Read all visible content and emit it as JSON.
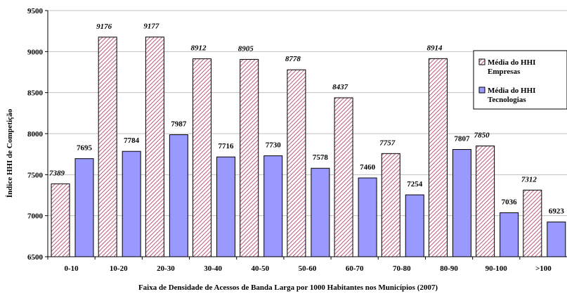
{
  "chart_data": {
    "type": "bar",
    "categories": [
      "0-10",
      "10-20",
      "20-30",
      "30-40",
      "40-50",
      "50-60",
      "60-70",
      "70-80",
      "80-90",
      "90-100",
      ">100"
    ],
    "series": [
      {
        "name": "Média do HHI Empresas",
        "values": [
          7389,
          9176,
          9177,
          8912,
          8905,
          8778,
          8437,
          7757,
          8914,
          7850,
          7312
        ],
        "color": "#c8758f",
        "pattern": "diagonal-hatch",
        "label_style": "italic"
      },
      {
        "name": "Média do HHI Tecnologias",
        "values": [
          7695,
          7784,
          7987,
          7716,
          7730,
          7578,
          7460,
          7254,
          7807,
          7036,
          6923
        ],
        "color": "#9999ff",
        "pattern": "solid",
        "label_style": "normal"
      }
    ],
    "title": "",
    "xlabel": "Faixa de Densidade de Acessos de Banda Larga por 1000 Habitantes nos Municípios (2007)",
    "ylabel": "Índice HHI de Competição",
    "ylim": [
      6500,
      9500
    ],
    "yticks": [
      6500,
      7000,
      7500,
      8000,
      8500,
      9000,
      9500
    ],
    "grid": true,
    "legend_position": "right"
  }
}
